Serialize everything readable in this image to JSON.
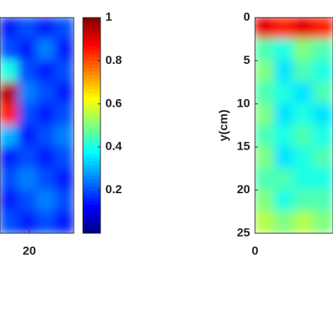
{
  "chart_data": [
    {
      "type": "heatmap",
      "colormap": "jet",
      "xlim": [
        16.7,
        25
      ],
      "xticks": [
        20
      ],
      "ylim": [
        0,
        25
      ],
      "clim": [
        0,
        1
      ],
      "cticks": [
        0.2,
        0.4,
        0.6,
        0.8,
        1
      ],
      "colorbar": true,
      "z": [
        [
          0.15,
          0.2,
          0.15,
          0.2
        ],
        [
          0.2,
          0.15,
          0.25,
          0.15
        ],
        [
          0.4,
          0.2,
          0.15,
          0.2
        ],
        [
          0.95,
          0.25,
          0.2,
          0.15
        ],
        [
          0.85,
          0.2,
          0.15,
          0.2
        ],
        [
          0.3,
          0.15,
          0.2,
          0.25
        ],
        [
          0.15,
          0.2,
          0.15,
          0.2
        ],
        [
          0.2,
          0.25,
          0.2,
          0.15
        ],
        [
          0.15,
          0.2,
          0.25,
          0.2
        ],
        [
          0.2,
          0.15,
          0.2,
          0.15
        ]
      ]
    },
    {
      "type": "heatmap",
      "colormap": "jet",
      "ylabel": "y(cm)",
      "xlim": [
        0,
        6
      ],
      "xticks": [
        0
      ],
      "ylim": [
        0,
        25
      ],
      "yticks": [
        0,
        5,
        10,
        15,
        20,
        25
      ],
      "clim": [
        0,
        1
      ],
      "colorbar": false,
      "z": [
        [
          0.9,
          0.85,
          0.9,
          0.85
        ],
        [
          0.45,
          0.4,
          0.5,
          0.45
        ],
        [
          0.5,
          0.35,
          0.45,
          0.4
        ],
        [
          0.45,
          0.4,
          0.35,
          0.45
        ],
        [
          0.5,
          0.35,
          0.4,
          0.35
        ],
        [
          0.45,
          0.4,
          0.45,
          0.4
        ],
        [
          0.5,
          0.35,
          0.4,
          0.45
        ],
        [
          0.45,
          0.45,
          0.4,
          0.4
        ],
        [
          0.5,
          0.4,
          0.45,
          0.45
        ],
        [
          0.55,
          0.5,
          0.55,
          0.5
        ]
      ]
    }
  ]
}
